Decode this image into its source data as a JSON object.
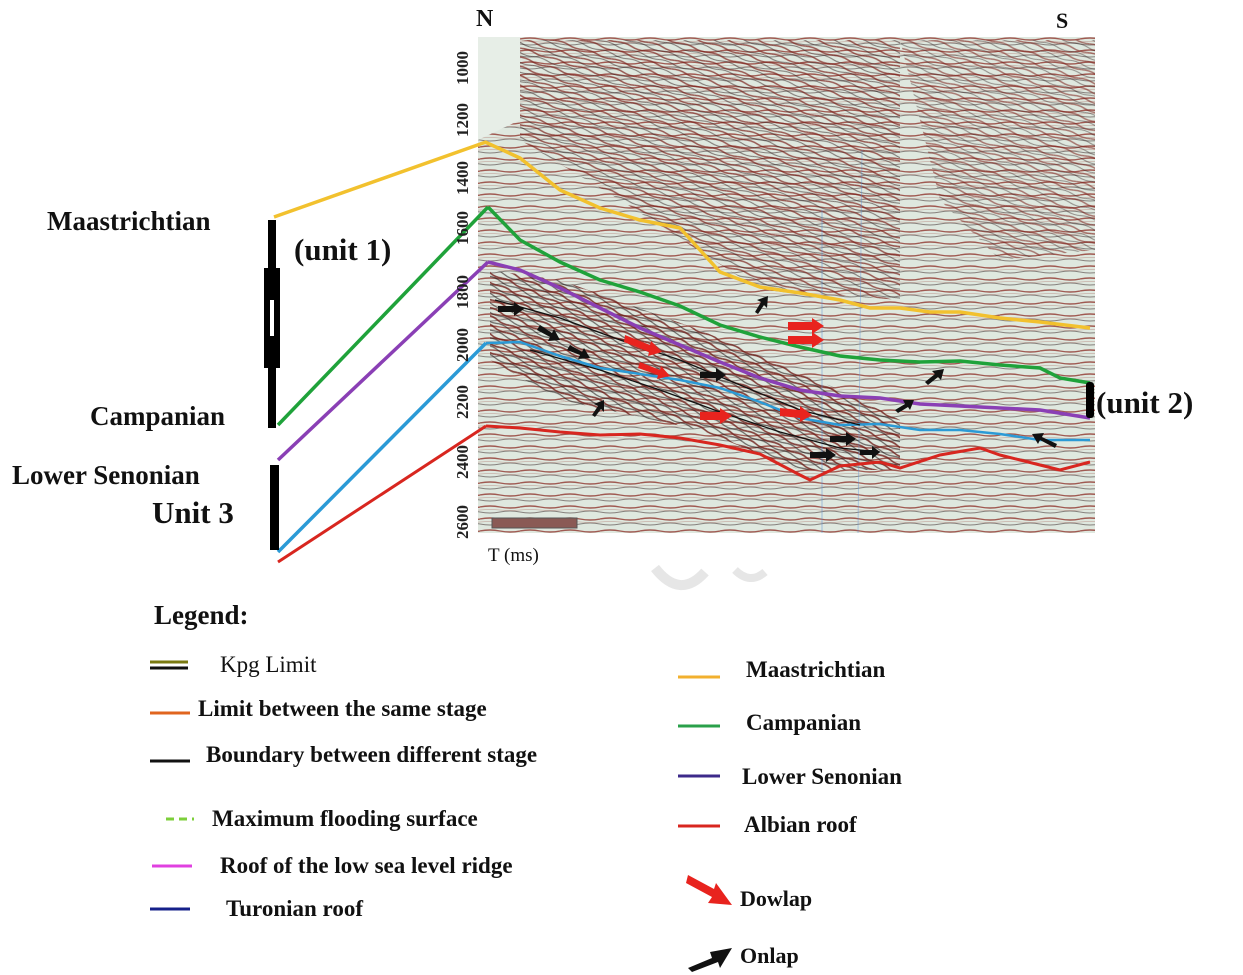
{
  "figure": {
    "north_label": "N",
    "south_label": "S",
    "time_axis": {
      "label": "T (ms)",
      "ticks": [
        "1000",
        "1200",
        "1400",
        "1600",
        "1800",
        "2000",
        "2200",
        "2400",
        "2600"
      ]
    },
    "unit_labels": {
      "unit1": "(unit   1)",
      "unit2": "(unit   2)",
      "unit3": "Unit   3"
    },
    "stage_labels": {
      "maastrichtian": "Maastrichtian",
      "campanian": "Campanian",
      "lower_senonian": "Lower Senonian"
    },
    "horizon_colors": {
      "maastrichtian": "#f2c12e",
      "campanian": "#1fa23a",
      "lower_senonian": "#8a3fb5",
      "turonian": "#2b9ad6",
      "albian": "#d8261f"
    }
  },
  "legend": {
    "title": "Legend:",
    "left_items": [
      {
        "label": "Kpg Limit",
        "color": "#6b6b10",
        "style": "double"
      },
      {
        "label": "Limit  between the same  stage",
        "color": "#e0651f",
        "style": "solid"
      },
      {
        "label": "Boundary between different stage",
        "color": "#111111",
        "style": "solid"
      },
      {
        "label": "Maximum flooding surface",
        "color": "#7ccf3a",
        "style": "dashed"
      },
      {
        "label": "Roof of the low sea level ridge",
        "color": "#e040e0",
        "style": "solid"
      },
      {
        "label": "Turonian roof",
        "color": "#15208a",
        "style": "solid"
      }
    ],
    "right_items": [
      {
        "label": "Maastrichtian",
        "color": "#f2b02e",
        "style": "solid"
      },
      {
        "label": "Campanian",
        "color": "#2aa04a",
        "style": "solid"
      },
      {
        "label": "Lower Senonian",
        "color": "#3c2a8a",
        "style": "solid"
      },
      {
        "label": "Albian roof",
        "color": "#d8261f",
        "style": "solid"
      },
      {
        "label": "Dowlap",
        "color": "#e8231e",
        "style": "arrow"
      },
      {
        "label": "Onlap",
        "color": "#111111",
        "style": "arrow"
      }
    ]
  }
}
